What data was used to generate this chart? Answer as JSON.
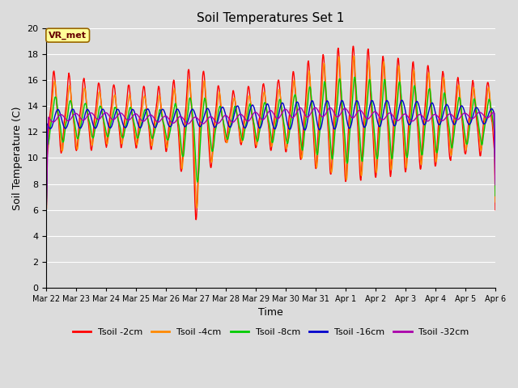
{
  "title": "Soil Temperatures Set 1",
  "xlabel": "Time",
  "ylabel": "Soil Temperature (C)",
  "ylim": [
    0,
    20
  ],
  "yticks": [
    0,
    2,
    4,
    6,
    8,
    10,
    12,
    14,
    16,
    18,
    20
  ],
  "background_color": "#dcdcdc",
  "plot_bg_color": "#dcdcdc",
  "series_colors": [
    "#ff0000",
    "#ff8800",
    "#00cc00",
    "#0000cc",
    "#aa00aa"
  ],
  "series_labels": [
    "Tsoil -2cm",
    "Tsoil -4cm",
    "Tsoil -8cm",
    "Tsoil -16cm",
    "Tsoil -32cm"
  ],
  "annotation_text": "VR_met",
  "annotation_bbox_color": "#ffff99",
  "annotation_bbox_edge": "#996600",
  "x_tick_labels": [
    "Mar 22",
    "Mar 23",
    "Mar 24",
    "Mar 25",
    "Mar 26",
    "Mar 27",
    "Mar 28",
    "Mar 29",
    "Mar 30",
    "Mar 31",
    "Apr 1",
    "Apr 2",
    "Apr 3",
    "Apr 4",
    "Apr 5",
    "Apr 6"
  ],
  "n_days": 15,
  "points_per_day": 96
}
